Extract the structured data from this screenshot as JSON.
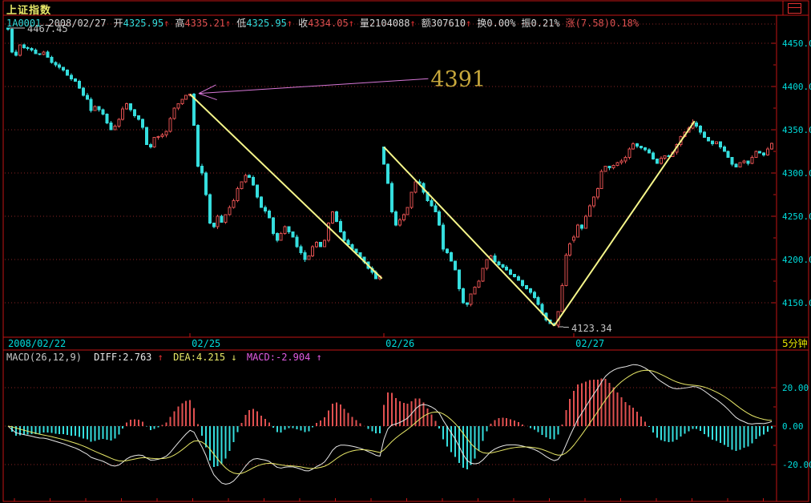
{
  "window": {
    "title": "上证指数"
  },
  "header": {
    "symbol": "1A0001",
    "date": "2008/02/27",
    "fields": [
      {
        "label": "开",
        "value": "4325.95",
        "arrow": "↑",
        "value_color": "cyan"
      },
      {
        "label": "高",
        "value": "4335.21",
        "arrow": "↑",
        "value_color": "red"
      },
      {
        "label": "低",
        "value": "4325.95",
        "arrow": "↑",
        "value_color": "cyan"
      },
      {
        "label": "收",
        "value": "4334.05",
        "arrow": "↑",
        "value_color": "red"
      },
      {
        "label": "量",
        "value": "2104088",
        "arrow": "↑",
        "value_color": "white"
      },
      {
        "label": "额",
        "value": "307610",
        "arrow": "↑",
        "value_color": "white"
      },
      {
        "label": "换",
        "value": "0.00%",
        "arrow": "",
        "value_color": "white"
      },
      {
        "label": "振",
        "value": "0.21%",
        "arrow": "",
        "value_color": "white"
      },
      {
        "label": "涨",
        "value": "(7.58)0.18%",
        "arrow": "",
        "value_color": "red",
        "label_color": "red"
      }
    ]
  },
  "colors": {
    "bg": "#000000",
    "border": "#c21414",
    "grid": "#8a2424",
    "cyan": "#35dede",
    "red": "#e05050",
    "white": "#d8d8d8",
    "axis_cyan": "#00dcdc",
    "yellow": "#e8e800",
    "gray": "#c4c4c4",
    "trendline": "#f6f68a",
    "arrow_line": "#d878d8",
    "callout": "#c8a83c",
    "diff_line": "#e8e8e8",
    "dea_line": "#e8e868",
    "hist_up": "#e05050",
    "hist_down": "#35dede"
  },
  "chart_data": {
    "type": "candlestick",
    "title": "上证指数 (1A0001) 5分钟",
    "interval_label": "5分钟",
    "price_axis": {
      "tick_labels": [
        "4450.0",
        "4400.0",
        "4350.0",
        "4300.0",
        "4250.0",
        "4200.0",
        "4150.0"
      ],
      "tick_values": [
        4450,
        4400,
        4350,
        4300,
        4250,
        4200,
        4150
      ],
      "minor_tick_values": [
        4425,
        4375,
        4325,
        4275,
        4225,
        4175
      ],
      "unlabeled_gridline": 4472,
      "ylim": [
        4110,
        4481
      ]
    },
    "macd_axis": {
      "tick_labels": [
        "20.00",
        "0.00",
        "-20.00"
      ],
      "tick_values": [
        20,
        0,
        -20
      ],
      "minor_tick_values": [
        10,
        -10
      ],
      "ylim": [
        -39,
        39
      ]
    },
    "x_axis": {
      "day_labels": [
        "2008/02/22",
        "02/25",
        "02/26",
        "02/27"
      ]
    },
    "macd_header": {
      "name": "MACD(26,12,9)",
      "diff": {
        "text": "DIFF:2.763",
        "arrow": "↑"
      },
      "dea": {
        "text": "DEA:4.215",
        "arrow": "↓"
      },
      "macd": {
        "text": "MACD:-2.904",
        "arrow": "↑"
      }
    },
    "annotations": {
      "high_label": "4467.45",
      "low_label": "4123.34",
      "callout_text": "4391"
    },
    "callout_arrow": {
      "tip_bar": 48.2,
      "tip_price": 4392,
      "tail_bar": 106.2,
      "tail_price": 4409,
      "text_bar": 106.8,
      "text_price": 4400
    },
    "trendlines": [
      {
        "from_bar": 46,
        "from_price": 4391,
        "to_bar": 94.5,
        "to_price": 4178
      },
      {
        "from_bar": 95,
        "from_price": 4330,
        "to_bar": 138,
        "to_price": 4123.34
      },
      {
        "from_bar": 138,
        "from_price": 4123.34,
        "to_bar": 173.5,
        "to_price": 4360
      }
    ],
    "candles": {
      "interval_minutes": 5,
      "day_start_indices": [
        0,
        46,
        95,
        143
      ],
      "day_opens": [
        4467.45,
        4390,
        4330,
        4222
      ],
      "specials": {
        "0": {
          "high": 4467.45
        },
        "46": {
          "high": 4391
        },
        "138": {
          "low": 4123.34
        },
        "173": {
          "high": 4362
        },
        "193": {
          "high": 4335.21
        }
      },
      "closes": [
        4466,
        4440,
        4436,
        4448,
        4445,
        4444,
        4442,
        4438,
        4437,
        4440,
        4434,
        4428,
        4425,
        4422,
        4419,
        4413,
        4409,
        4406,
        4398,
        4390,
        4385,
        4372,
        4377,
        4373,
        4368,
        4358,
        4350,
        4354,
        4362,
        4374,
        4380,
        4373,
        4366,
        4362,
        4353,
        4333,
        4330,
        4341,
        4342,
        4344,
        4348,
        4363,
        4375,
        4380,
        4385,
        4390,
        4391,
        4355,
        4308,
        4300,
        4275,
        4242,
        4238,
        4250,
        4243,
        4252,
        4260,
        4268,
        4282,
        4290,
        4297,
        4295,
        4286,
        4272,
        4260,
        4256,
        4248,
        4230,
        4222,
        4230,
        4238,
        4232,
        4226,
        4215,
        4208,
        4200,
        4204,
        4215,
        4220,
        4215,
        4222,
        4242,
        4255,
        4244,
        4232,
        4222,
        4217,
        4212,
        4208,
        4203,
        4197,
        4190,
        4185,
        4178,
        4181,
        4310,
        4288,
        4255,
        4240,
        4246,
        4252,
        4260,
        4278,
        4290,
        4288,
        4278,
        4268,
        4262,
        4255,
        4240,
        4212,
        4208,
        4198,
        4188,
        4166,
        4150,
        4148,
        4160,
        4168,
        4175,
        4190,
        4200,
        4204,
        4197,
        4194,
        4191,
        4188,
        4183,
        4180,
        4176,
        4170,
        4166,
        4162,
        4156,
        4148,
        4138,
        4130,
        4126,
        4124,
        4140,
        4170,
        4205,
        4218,
        4226,
        4240,
        4236,
        4250,
        4262,
        4272,
        4282,
        4302,
        4308,
        4306,
        4309,
        4312,
        4314,
        4318,
        4328,
        4334,
        4331,
        4329,
        4327,
        4323,
        4316,
        4311,
        4317,
        4320,
        4319,
        4324,
        4333,
        4342,
        4347,
        4352,
        4358,
        4354,
        4347,
        4341,
        4337,
        4334,
        4336,
        4330,
        4325,
        4318,
        4310,
        4307,
        4312,
        4314,
        4311,
        4318,
        4325,
        4323,
        4321,
        4328,
        4334.05
      ]
    }
  }
}
